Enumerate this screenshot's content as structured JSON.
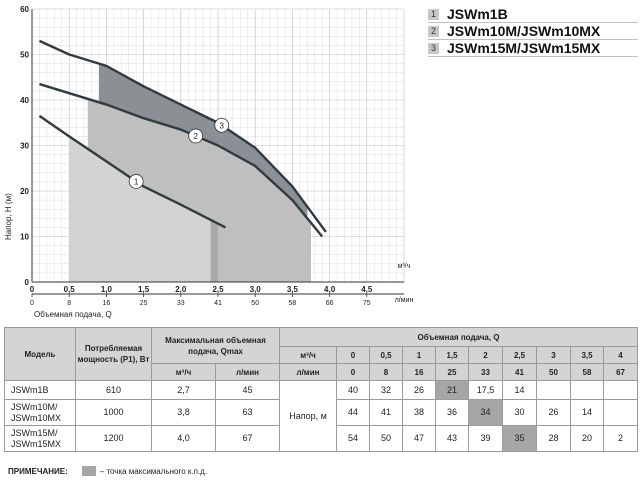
{
  "chart_data": {
    "type": "line",
    "xlabel": "Объемная подача, Q",
    "ylabel": "Напор, Н (м)",
    "x_unit_top": "м³/ч",
    "x_unit_bottom": "л/мин",
    "xlim": [
      0,
      5
    ],
    "ylim": [
      0,
      60
    ],
    "x_ticks": [
      "0",
      "0,5",
      "1,0",
      "1,5",
      "2,0",
      "2,5",
      "3,0",
      "3,5",
      "4,0",
      "4,5"
    ],
    "x_ticks_lmin": [
      "0",
      "8",
      "16",
      "25",
      "33",
      "41",
      "50",
      "58",
      "66",
      "75"
    ],
    "y_ticks": [
      "0",
      "10",
      "20",
      "30",
      "40",
      "50",
      "60"
    ],
    "series": [
      {
        "name": "1",
        "x": [
          0.1,
          0.5,
          1.0,
          1.5,
          2.0,
          2.6
        ],
        "y": [
          36.5,
          32,
          26.5,
          21,
          17,
          12
        ]
      },
      {
        "name": "2",
        "x": [
          0.1,
          0.5,
          1.0,
          1.5,
          2.0,
          2.5,
          3.0,
          3.5,
          3.9
        ],
        "y": [
          43.5,
          41.5,
          39,
          36,
          33.5,
          30,
          25.5,
          18,
          10
        ]
      },
      {
        "name": "3",
        "x": [
          0.1,
          0.5,
          1.0,
          1.5,
          2.0,
          2.5,
          3.0,
          3.5,
          3.95
        ],
        "y": [
          53,
          50,
          47.5,
          43,
          39,
          35,
          29.5,
          21,
          11
        ]
      }
    ]
  },
  "legend": [
    {
      "num": "1",
      "label": "JSWm1B"
    },
    {
      "num": "2",
      "label": "JSWm10M/JSWm10MX"
    },
    {
      "num": "3",
      "label": "JSWm15M/JSWm15MX"
    }
  ],
  "table": {
    "h_model": "Модель",
    "h_power": "Потребляемая мощность (Р1), Вт",
    "h_qmax": "Максимальная объемная подача, Qmax",
    "h_flow": "Объемная подача, Q",
    "u_m3h": "м³/ч",
    "u_lmin": "л/мин",
    "flow_m3h": [
      "0",
      "0,5",
      "1",
      "1,5",
      "2",
      "2,5",
      "3",
      "3,5",
      "4"
    ],
    "flow_lmin": [
      "0",
      "8",
      "16",
      "25",
      "33",
      "41",
      "50",
      "58",
      "67"
    ],
    "head_label": "Напор, м",
    "rows": [
      {
        "model": "JSWm1B",
        "power": "610",
        "q_m3h": "2,7",
        "q_lmin": "45",
        "heads": [
          "40",
          "32",
          "26",
          "21",
          "17,5",
          "14",
          "",
          "",
          ""
        ],
        "hl": 3
      },
      {
        "model": "JSWm10M/ JSWm10MX",
        "power": "1000",
        "q_m3h": "3,8",
        "q_lmin": "63",
        "heads": [
          "44",
          "41",
          "38",
          "36",
          "34",
          "30",
          "26",
          "14",
          ""
        ],
        "hl": 4
      },
      {
        "model": "JSWm15M/ JSWm15MX",
        "power": "1200",
        "q_m3h": "4,0",
        "q_lmin": "67",
        "heads": [
          "54",
          "50",
          "47",
          "43",
          "39",
          "35",
          "28",
          "20",
          "2"
        ],
        "hl": 5
      }
    ]
  },
  "note": {
    "label": "ПРИМЕЧАНИЕ:",
    "text": "– точка максимального к.п.д."
  }
}
